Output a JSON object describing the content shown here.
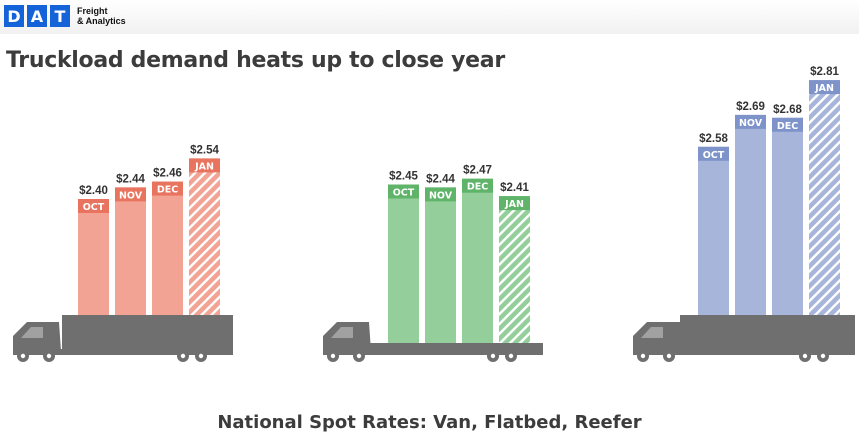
{
  "brand": {
    "letters": [
      "D",
      "A",
      "T"
    ],
    "tagline_line1": "Freight",
    "tagline_line2": "& Analytics",
    "color": "#1463d9"
  },
  "title": "Truckload demand heats up to close year",
  "footer": "National Spot Rates: Van, Flatbed, Reefer",
  "chart_data": [
    {
      "type": "bar",
      "name": "Van",
      "categories": [
        "OCT",
        "NOV",
        "DEC",
        "JAN"
      ],
      "values": [
        2.4,
        2.44,
        2.46,
        2.54
      ],
      "value_labels": [
        "$2.40",
        "$2.44",
        "$2.46",
        "$2.54"
      ],
      "projected": [
        false,
        false,
        false,
        true
      ],
      "color": "#f2a394",
      "label_color": "#e8735e",
      "trailer": "dry-van"
    },
    {
      "type": "bar",
      "name": "Flatbed",
      "categories": [
        "OCT",
        "NOV",
        "DEC",
        "JAN"
      ],
      "values": [
        2.45,
        2.44,
        2.47,
        2.41
      ],
      "value_labels": [
        "$2.45",
        "$2.44",
        "$2.47",
        "$2.41"
      ],
      "projected": [
        false,
        false,
        false,
        true
      ],
      "color": "#94cf9b",
      "label_color": "#5fb46a",
      "trailer": "flatbed"
    },
    {
      "type": "bar",
      "name": "Reefer",
      "categories": [
        "OCT",
        "NOV",
        "DEC",
        "JAN"
      ],
      "values": [
        2.58,
        2.69,
        2.68,
        2.81
      ],
      "value_labels": [
        "$2.58",
        "$2.69",
        "$2.68",
        "$2.81"
      ],
      "projected": [
        false,
        false,
        false,
        true
      ],
      "color": "#a7b5da",
      "label_color": "#7e93c9",
      "trailer": "reefer"
    }
  ],
  "truck_color": "#6f6f6f"
}
